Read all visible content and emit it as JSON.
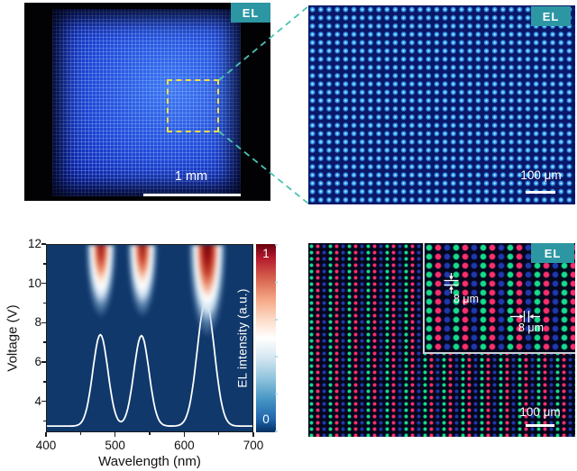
{
  "panels": {
    "overview_el": {
      "badge": "EL",
      "scale_bar_label": "1 mm"
    },
    "zoom_el": {
      "badge": "EL",
      "scale_bar_label": "100 μm"
    },
    "rgb_el": {
      "badge": "EL",
      "scale_bar_label": "100 μm",
      "inset": {
        "vertical_pitch_label": "8 μm",
        "horizontal_pitch_label": "8 μm"
      }
    }
  },
  "chart_data": {
    "type": "heatmap",
    "title": "",
    "xlabel": "Wavelength (nm)",
    "ylabel": "Voltage (V)",
    "xlim": [
      400,
      700
    ],
    "ylim": [
      2.4,
      12
    ],
    "xticks": [
      400,
      500,
      600,
      700
    ],
    "xminorticks": [
      450,
      550,
      650
    ],
    "yticks": [
      4,
      6,
      8,
      10,
      12
    ],
    "yminorticks": [
      3,
      5,
      7,
      9,
      11
    ],
    "grid": false,
    "legend": "none",
    "colorbar": {
      "label": "EL intensity (a.u.)",
      "min": 0,
      "max": 1,
      "min_label": "0",
      "max_label": "1",
      "colormap": "RdBu_r",
      "position": "right"
    },
    "heatmap_peaks": [
      {
        "wavelength_nm": 478,
        "onset_V": 8.0,
        "peak_intensity": 0.85
      },
      {
        "wavelength_nm": 538,
        "onset_V": 8.0,
        "peak_intensity": 0.85
      },
      {
        "wavelength_nm": 632,
        "onset_V": 7.3,
        "peak_intensity": 1.0
      }
    ],
    "overlay_spectrum": {
      "type": "line",
      "color": "#ffffff",
      "baseline_V": 2.7,
      "peaks": [
        {
          "center_nm": 478,
          "peak_V": 7.4,
          "sigma_nm": 11
        },
        {
          "center_nm": 538,
          "peak_V": 7.35,
          "sigma_nm": 11
        },
        {
          "center_nm": 632,
          "peak_V": 9.15,
          "sigma_nm": 12.5
        }
      ]
    }
  },
  "colors": {
    "badge_teal": "#2d96a3",
    "connector_teal": "#4cc3b2",
    "zoom_box_yellow": "#f5e04b",
    "blue_pixel": "#37a0f5",
    "red_subpixel": "#ff2f6e",
    "green_subpixel": "#17dc8c",
    "navy_subpixel": "#2038b0",
    "heatmap_background": "#10386b",
    "spectrum_curve": "#ffffff"
  }
}
